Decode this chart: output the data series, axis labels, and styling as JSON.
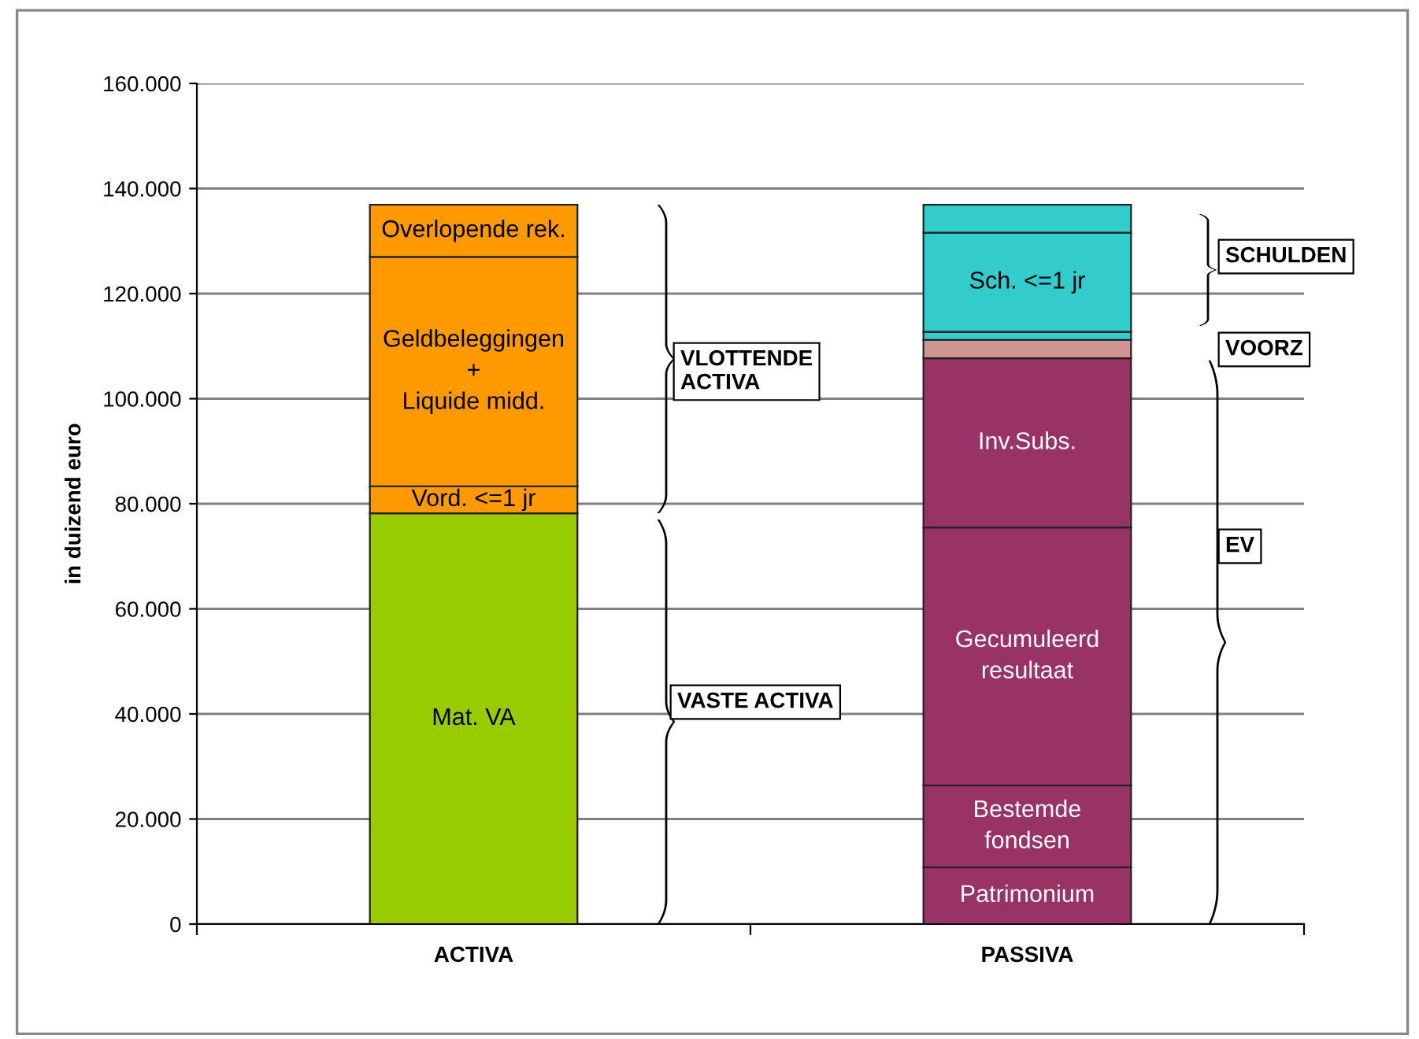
{
  "chart_data": {
    "type": "bar",
    "stacked": true,
    "ylabel": "in duizend euro",
    "categories": [
      "ACTIVA",
      "PASSIVA"
    ],
    "series": [
      {
        "name": "Mat. VA",
        "color": "#99cc00",
        "values": [
          78200,
          null
        ]
      },
      {
        "name": "Vord. <=1 jr",
        "color": "#ff9900",
        "values": [
          5100,
          null
        ]
      },
      {
        "name": "Geldbeleggingen\n+\nLiquide midd.",
        "color": "#ff9900",
        "values": [
          43700,
          null
        ]
      },
      {
        "name": "Overlopende rek.",
        "color": "#ff9900",
        "values": [
          9900,
          null
        ]
      },
      {
        "name": "Patrimonium",
        "color": "#993366",
        "values": [
          null,
          10800
        ]
      },
      {
        "name": "Bestemde\nfondsen",
        "color": "#993366",
        "values": [
          null,
          15600
        ]
      },
      {
        "name": "Gecumuleerd\nresultaat",
        "color": "#993366",
        "values": [
          null,
          49100
        ]
      },
      {
        "name": "Inv.Subs.",
        "color": "#993366",
        "values": [
          null,
          32200
        ]
      },
      {
        "color": "#d09494",
        "values": [
          null,
          3500
        ]
      },
      {
        "color": "#33cccc",
        "values": [
          null,
          1500
        ]
      },
      {
        "name": "Sch. <=1 jr",
        "color": "#33cccc",
        "values": [
          null,
          18900
        ]
      },
      {
        "color": "#33cccc",
        "values": [
          null,
          5300
        ]
      }
    ],
    "ylim": [
      0,
      160000
    ],
    "yticks": [
      {
        "value": 0,
        "label": "0"
      },
      {
        "value": 20000,
        "label": "20.000"
      },
      {
        "value": 40000,
        "label": "40.000"
      },
      {
        "value": 60000,
        "label": "60.000"
      },
      {
        "value": 80000,
        "label": "80.000"
      },
      {
        "value": 100000,
        "label": "100.000"
      },
      {
        "value": 120000,
        "label": "120.000"
      },
      {
        "value": 140000,
        "label": "140.000"
      },
      {
        "value": 160000,
        "label": "160.000"
      }
    ],
    "grid": "y",
    "legend": false,
    "annotations": [
      "VLOTTENDE\nACTIVA",
      "VASTE ACTIVA",
      "SCHULDEN",
      "VOORZ",
      "EV"
    ]
  }
}
